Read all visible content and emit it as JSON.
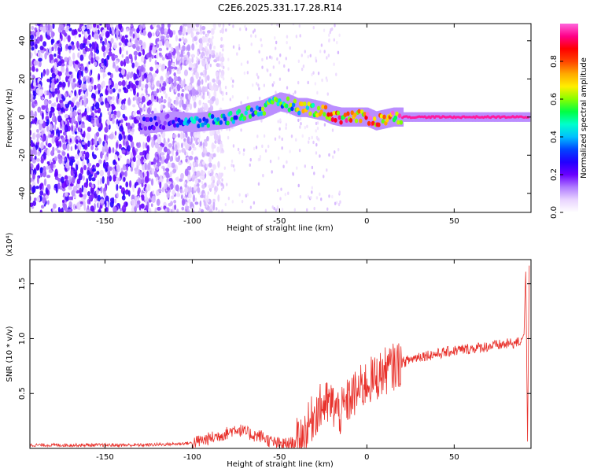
{
  "title": "C2E6.2025.331.17.28.R14",
  "chart_data": [
    {
      "type": "heatmap",
      "xlabel": "Height of straight line (km)",
      "ylabel": "Frequency (Hz)",
      "xlim": [
        -193,
        94
      ],
      "ylim": [
        -50,
        49
      ],
      "x_ticks": [
        -150,
        -100,
        -50,
        0,
        50
      ],
      "y_ticks": [
        -40,
        -20,
        0,
        20,
        40
      ],
      "colorbar": {
        "label": "Normalized spectral amplitude",
        "range": [
          0,
          1
        ],
        "ticks": [
          "0.0",
          "0.2",
          "0.4",
          "0.6",
          "0.8"
        ],
        "colors": [
          "#ffffff",
          "#e9d4ff",
          "#b07cff",
          "#6a00ff",
          "#2200ff",
          "#0044ff",
          "#00c0ff",
          "#00ffcc",
          "#00ff44",
          "#88ff00",
          "#ffee00",
          "#ffaa00",
          "#ff4400",
          "#ff0000",
          "#ff0088",
          "#ff66dd"
        ]
      },
      "ridge": {
        "x": [
          -130,
          -120,
          -110,
          -100,
          -90,
          -80,
          -70,
          -60,
          -50,
          -45,
          -40,
          -35,
          -30,
          -25,
          -20,
          -15,
          -10,
          -5,
          0,
          5,
          10,
          15,
          20,
          40,
          60,
          80,
          93
        ],
        "y": [
          -4,
          -3,
          -2,
          -3,
          -2,
          -1,
          2,
          4,
          8,
          7,
          5,
          5,
          4,
          3,
          1,
          0,
          0,
          0,
          0,
          -2,
          -1,
          0,
          0,
          0,
          0,
          0,
          0
        ],
        "amplitude": [
          0.25,
          0.25,
          0.3,
          0.45,
          0.5,
          0.5,
          0.5,
          0.55,
          0.55,
          0.55,
          0.6,
          0.65,
          0.7,
          0.72,
          0.8,
          0.85,
          0.9,
          0.9,
          0.92,
          0.9,
          0.92,
          0.95,
          0.95,
          0.95,
          0.95,
          0.95,
          0.95
        ]
      },
      "noise_region_x": [
        -193,
        -100
      ]
    },
    {
      "type": "line",
      "xlabel": "Height of straight line (km)",
      "ylabel": "SNR (10 * v/v)",
      "scale_label": "(x10⁴)",
      "color": "#e8302a",
      "xlim": [
        -193,
        94
      ],
      "ylim": [
        0,
        1.72
      ],
      "x_ticks": [
        -150,
        -100,
        -50,
        0,
        50
      ],
      "y_ticks": [
        "0.5",
        "1.0",
        "1.5"
      ],
      "x": [
        -193,
        -160,
        -130,
        -110,
        -100,
        -90,
        -80,
        -75,
        -70,
        -65,
        -60,
        -55,
        -50,
        -45,
        -40,
        -35,
        -30,
        -25,
        -20,
        -15,
        -10,
        -5,
        0,
        5,
        10,
        15,
        20,
        30,
        40,
        50,
        60,
        70,
        80,
        85,
        88,
        90,
        91,
        92,
        93
      ],
      "y": [
        0.03,
        0.03,
        0.03,
        0.04,
        0.05,
        0.09,
        0.14,
        0.18,
        0.15,
        0.12,
        0.11,
        0.06,
        0.04,
        0.04,
        0.06,
        0.15,
        0.32,
        0.4,
        0.4,
        0.32,
        0.45,
        0.52,
        0.6,
        0.64,
        0.7,
        0.74,
        0.78,
        0.84,
        0.86,
        0.89,
        0.91,
        0.93,
        0.95,
        0.96,
        0.97,
        1.05,
        1.62,
        0.08,
        1.68
      ]
    }
  ]
}
